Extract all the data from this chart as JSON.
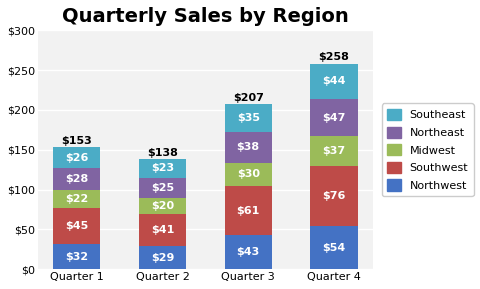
{
  "title": "Quarterly Sales by Region",
  "categories": [
    "Quarter 1",
    "Quarter 2",
    "Quarter 3",
    "Quarter 4"
  ],
  "series": [
    {
      "name": "Northwest",
      "values": [
        32,
        29,
        43,
        54
      ],
      "color": "#4472C4"
    },
    {
      "name": "Southwest",
      "values": [
        45,
        41,
        61,
        76
      ],
      "color": "#BE4B48"
    },
    {
      "name": "Midwest",
      "values": [
        22,
        20,
        30,
        37
      ],
      "color": "#9BBB59"
    },
    {
      "name": "Northeast",
      "values": [
        28,
        25,
        38,
        47
      ],
      "color": "#8064A2"
    },
    {
      "name": "Southeast",
      "values": [
        26,
        23,
        35,
        44
      ],
      "color": "#4BACC6"
    }
  ],
  "totals": [
    153,
    138,
    207,
    258
  ],
  "ylim": [
    0,
    300
  ],
  "yticks": [
    0,
    50,
    100,
    150,
    200,
    250,
    300
  ],
  "ytick_labels": [
    "$0",
    "$50",
    "$100",
    "$150",
    "$200",
    "$250",
    "$300"
  ],
  "background_color": "#FFFFFF",
  "plot_bg_color": "#F2F2F2",
  "grid_color": "#FFFFFF",
  "title_fontsize": 14,
  "label_fontsize": 8,
  "tick_fontsize": 8,
  "legend_fontsize": 8,
  "bar_width": 0.55,
  "total_label_fontsize": 8
}
